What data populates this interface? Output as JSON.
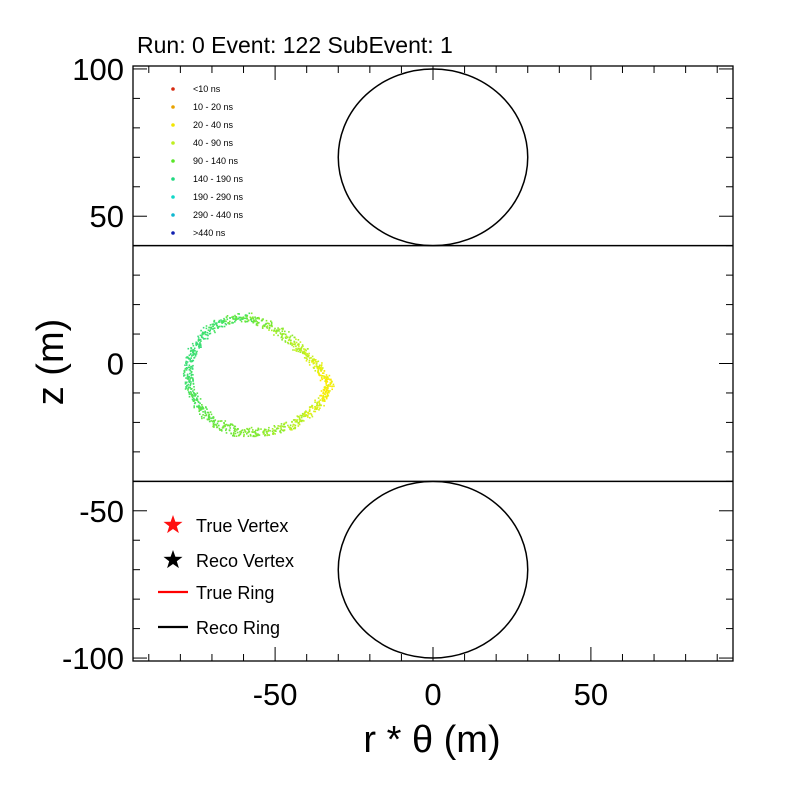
{
  "chart_data": {
    "type": "scatter",
    "title": "Run: 0  Event: 122  SubEvent: 1",
    "xlabel": "r * θ (m)",
    "ylabel": "z (m)",
    "xlim": [
      -95,
      95
    ],
    "ylim": [
      -101,
      101
    ],
    "x_ticks": [
      -50,
      0,
      50
    ],
    "y_ticks": [
      100,
      50,
      0,
      -50,
      -100
    ],
    "x_tick_labels": [
      "-50",
      "0",
      "50"
    ],
    "y_tick_labels": [
      "100",
      "50",
      "0",
      "-50",
      "-100"
    ],
    "grid": false,
    "time_legend": {
      "placement": "top-left",
      "entries": [
        {
          "label": "<10 ns",
          "color": "#d62a10"
        },
        {
          "label": "10 - 20 ns",
          "color": "#e8a200"
        },
        {
          "label": "20 - 40 ns",
          "color": "#f2e600"
        },
        {
          "label": "40 - 90 ns",
          "color": "#bfee20"
        },
        {
          "label": "90 - 140 ns",
          "color": "#58e628"
        },
        {
          "label": "140 - 190 ns",
          "color": "#20d880"
        },
        {
          "label": "190 - 290 ns",
          "color": "#10d8c8"
        },
        {
          "label": "290 - 440 ns",
          "color": "#10b8d0"
        },
        {
          "label": ">440 ns",
          "color": "#1020b0"
        }
      ]
    },
    "marker_legend": {
      "placement": "bottom-left",
      "entries": [
        {
          "label": "True Vertex",
          "kind": "star",
          "color": "#ff1010"
        },
        {
          "label": "Reco Vertex",
          "kind": "star",
          "color": "#000000"
        },
        {
          "label": "True Ring",
          "kind": "line",
          "color": "#ff0000"
        },
        {
          "label": "Reco Ring",
          "kind": "line",
          "color": "#000000"
        }
      ]
    },
    "detector": {
      "barrel_z_top": 40,
      "barrel_z_bottom": -40,
      "top_cap": {
        "cx": 0,
        "cz": 70,
        "radius": 30
      },
      "bottom_cap": {
        "cx": 0,
        "cz": -70,
        "radius": 30
      }
    },
    "hit_ring": {
      "outline": [
        [
          -33,
          -7
        ],
        [
          -36,
          -2
        ],
        [
          -40,
          3
        ],
        [
          -45,
          8
        ],
        [
          -52,
          13
        ],
        [
          -59,
          16
        ],
        [
          -66,
          15
        ],
        [
          -72,
          11
        ],
        [
          -76,
          5
        ],
        [
          -78,
          -2
        ],
        [
          -77,
          -9
        ],
        [
          -74,
          -15
        ],
        [
          -69,
          -20
        ],
        [
          -62,
          -23
        ],
        [
          -54,
          -23
        ],
        [
          -46,
          -21
        ],
        [
          -40,
          -17
        ],
        [
          -35,
          -12
        ]
      ],
      "colors": [
        "#ffe800",
        "#e8f010",
        "#c8f020",
        "#a8ee28",
        "#88ea30",
        "#68e640",
        "#48e460",
        "#40e070",
        "#38de78",
        "#40e070",
        "#48e260",
        "#58e450",
        "#68e640",
        "#78e838",
        "#88ea30",
        "#a8ee28",
        "#c8f020",
        "#e8f010"
      ]
    }
  }
}
